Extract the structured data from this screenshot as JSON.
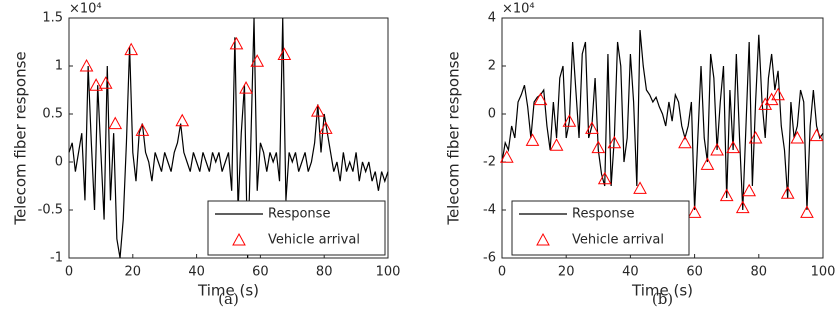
{
  "chart_data": [
    {
      "type": "line",
      "caption": "(a)",
      "xlabel": "Time (s)",
      "ylabel": "Telecom fiber response",
      "y_multiplier": "×10⁴",
      "xlim": [
        0,
        100
      ],
      "xticks": [
        0,
        20,
        40,
        60,
        80,
        100
      ],
      "ylim": [
        -1,
        1.5
      ],
      "yticks": [
        -1,
        -0.5,
        0,
        0.5,
        1,
        1.5
      ],
      "legend": "lower right",
      "series": [
        {
          "name": "Response",
          "type": "line",
          "color": "#000000",
          "x": [
            0,
            1,
            2,
            3,
            4,
            5,
            6,
            7,
            8,
            9,
            10,
            11,
            12,
            13,
            14,
            15,
            16,
            17,
            18,
            19,
            20,
            21,
            22,
            23,
            24,
            25,
            26,
            27,
            28,
            29,
            30,
            31,
            32,
            33,
            34,
            35,
            36,
            37,
            38,
            39,
            40,
            41,
            42,
            43,
            44,
            45,
            46,
            47,
            48,
            49,
            50,
            51,
            52,
            53,
            54,
            55,
            56,
            57,
            58,
            59,
            60,
            61,
            62,
            63,
            64,
            65,
            66,
            67,
            68,
            69,
            70,
            71,
            72,
            73,
            74,
            75,
            76,
            77,
            78,
            79,
            80,
            81,
            82,
            83,
            84,
            85,
            86,
            87,
            88,
            89,
            90,
            91,
            92,
            93,
            94,
            95,
            96,
            97,
            98,
            99,
            100
          ],
          "values": [
            0.1,
            0.2,
            -0.1,
            0.1,
            0.3,
            -0.4,
            1.0,
            0.2,
            -0.5,
            0.8,
            0.1,
            -0.6,
            1.0,
            -0.4,
            0.3,
            -0.8,
            -1.0,
            -0.6,
            0.2,
            1.2,
            0.1,
            -0.2,
            0.3,
            0.4,
            0.1,
            0.0,
            -0.2,
            0.1,
            0.0,
            -0.1,
            0.1,
            0.0,
            -0.1,
            0.1,
            0.2,
            0.4,
            0.1,
            0.0,
            -0.1,
            0.1,
            0.0,
            -0.1,
            0.1,
            0.0,
            -0.1,
            0.1,
            0.0,
            0.1,
            -0.1,
            0.0,
            0.1,
            -0.3,
            1.3,
            -0.5,
            0.3,
            0.8,
            -1.0,
            0.2,
            1.5,
            -0.3,
            0.2,
            0.1,
            -0.1,
            0.1,
            0.0,
            0.1,
            -0.2,
            1.5,
            -0.4,
            0.1,
            0.0,
            0.1,
            -0.1,
            0.0,
            0.1,
            -0.1,
            0.0,
            0.2,
            0.6,
            0.1,
            0.5,
            0.3,
            0.1,
            -0.1,
            0.0,
            -0.2,
            0.1,
            -0.1,
            0.0,
            -0.1,
            0.1,
            -0.2,
            0.0,
            -0.1,
            0.0,
            -0.2,
            -0.1,
            -0.3,
            -0.1,
            -0.2,
            -0.1
          ]
        },
        {
          "name": "Vehicle arrival",
          "type": "scatter",
          "marker": "triangle",
          "color": "#ff0000",
          "x": [
            5.5,
            8.5,
            11.5,
            14.5,
            19.5,
            23,
            35.5,
            52.5,
            55.5,
            59,
            67.5,
            78,
            80.5
          ],
          "values": [
            1.0,
            0.8,
            0.82,
            0.4,
            1.17,
            0.33,
            0.43,
            1.23,
            0.77,
            1.05,
            1.12,
            0.53,
            0.35
          ]
        }
      ]
    },
    {
      "type": "line",
      "caption": "(b)",
      "xlabel": "Time (s)",
      "ylabel": "Telecom fiber response",
      "y_multiplier": "×10⁴",
      "xlim": [
        0,
        100
      ],
      "xticks": [
        0,
        20,
        40,
        60,
        80,
        100
      ],
      "ylim": [
        -6,
        4
      ],
      "yticks": [
        -6,
        -4,
        -2,
        0,
        2,
        4
      ],
      "legend": "lower left",
      "series": [
        {
          "name": "Response",
          "type": "line",
          "color": "#000000",
          "x": [
            0,
            1,
            2,
            3,
            4,
            5,
            6,
            7,
            8,
            9,
            10,
            11,
            12,
            13,
            14,
            15,
            16,
            17,
            18,
            19,
            20,
            21,
            22,
            23,
            24,
            25,
            26,
            27,
            28,
            29,
            30,
            31,
            32,
            33,
            34,
            35,
            36,
            37,
            38,
            39,
            40,
            41,
            42,
            43,
            44,
            45,
            46,
            47,
            48,
            49,
            50,
            51,
            52,
            53,
            54,
            55,
            56,
            57,
            58,
            59,
            60,
            61,
            62,
            63,
            64,
            65,
            66,
            67,
            68,
            69,
            70,
            71,
            72,
            73,
            74,
            75,
            76,
            77,
            78,
            79,
            80,
            81,
            82,
            83,
            84,
            85,
            86,
            87,
            88,
            89,
            90,
            91,
            92,
            93,
            94,
            95,
            96,
            97,
            98,
            99,
            100
          ],
          "values": [
            -2.0,
            -1.2,
            -1.5,
            -0.5,
            -1.0,
            0.5,
            0.8,
            1.2,
            0.3,
            -1.0,
            0.5,
            0.7,
            0.8,
            1.0,
            -0.5,
            -1.5,
            0.5,
            -1.0,
            1.5,
            2.0,
            -1.0,
            -0.3,
            3.0,
            1.0,
            -1.0,
            2.5,
            3.0,
            -1.0,
            -0.5,
            1.5,
            -1.5,
            -2.5,
            -3.0,
            2.5,
            -3.0,
            -1.0,
            3.0,
            2.0,
            -2.0,
            -1.0,
            2.5,
            0.5,
            -3.0,
            3.5,
            2.0,
            1.0,
            0.8,
            0.5,
            0.7,
            0.3,
            0.0,
            -0.5,
            0.5,
            -0.3,
            0.8,
            0.5,
            -0.5,
            -1.0,
            -0.5,
            0.5,
            -4.0,
            -1.0,
            2.0,
            -1.0,
            -2.0,
            2.5,
            1.5,
            -1.5,
            0.5,
            2.0,
            -3.5,
            1.0,
            -1.5,
            2.5,
            -1.0,
            -4.0,
            -0.5,
            3.0,
            -3.0,
            0.5,
            3.3,
            0.5,
            -1.0,
            1.5,
            2.5,
            1.0,
            1.8,
            -0.5,
            -1.5,
            -3.5,
            0.5,
            -1.0,
            -0.5,
            1.0,
            0.5,
            -4.0,
            -0.5,
            1.0,
            -0.5,
            -1.0,
            -0.8
          ]
        },
        {
          "name": "Vehicle arrival",
          "type": "scatter",
          "marker": "triangle",
          "color": "#ff0000",
          "x": [
            1.5,
            9.5,
            12,
            17,
            21,
            28,
            30,
            32,
            35,
            43,
            57,
            60,
            64,
            67,
            70,
            72,
            75,
            77,
            79,
            82,
            84,
            86,
            89,
            92,
            95,
            98
          ],
          "values": [
            -1.8,
            -1.1,
            0.6,
            -1.3,
            -0.3,
            -0.6,
            -1.4,
            -2.7,
            -1.2,
            -3.1,
            -1.2,
            -4.1,
            -2.1,
            -1.5,
            -3.4,
            -1.4,
            -3.9,
            -3.2,
            -1.0,
            0.4,
            0.6,
            0.8,
            -3.3,
            -1.0,
            -4.1,
            -0.9
          ]
        }
      ]
    }
  ]
}
